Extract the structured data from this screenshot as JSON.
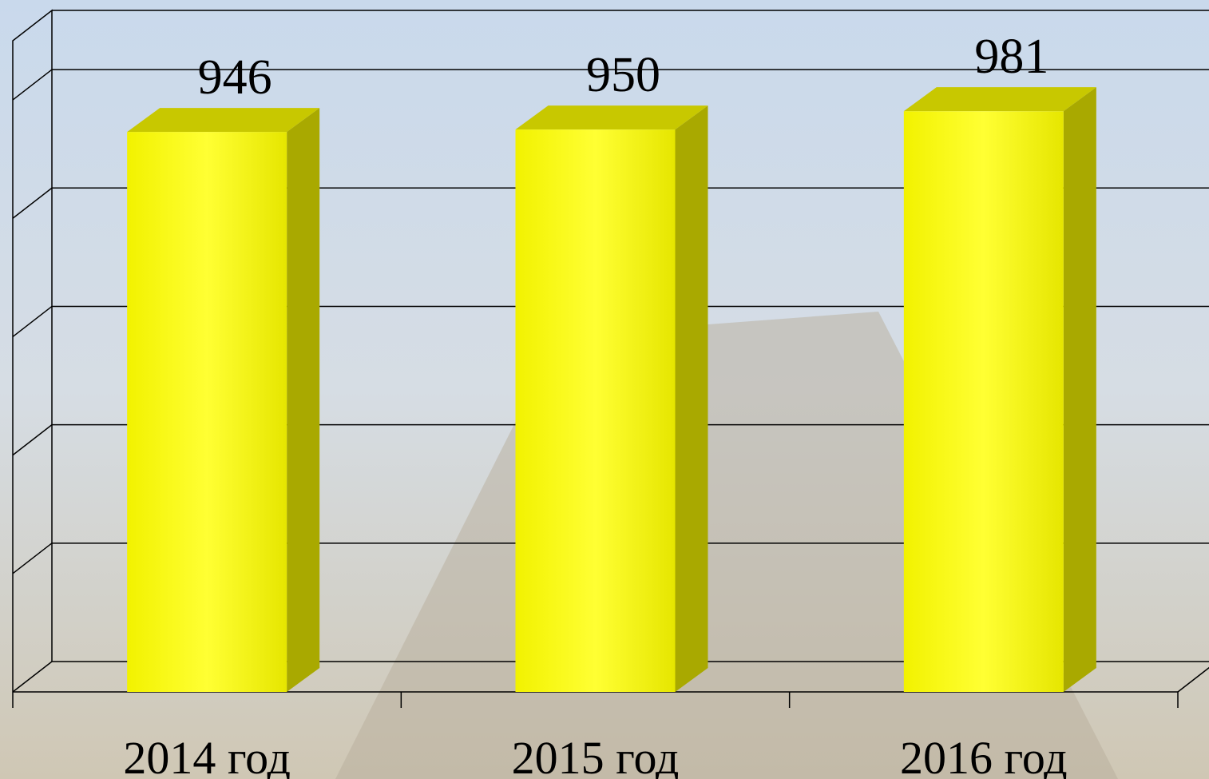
{
  "chart_data": {
    "type": "bar3d",
    "categories": [
      "2014 год",
      "2015 год",
      "2016 год"
    ],
    "values": [
      946,
      950,
      981
    ],
    "color": "#ffff00",
    "ylim": [
      0,
      1100
    ],
    "yticks": [
      0,
      200,
      400,
      600,
      800,
      1000
    ],
    "grid": true
  }
}
